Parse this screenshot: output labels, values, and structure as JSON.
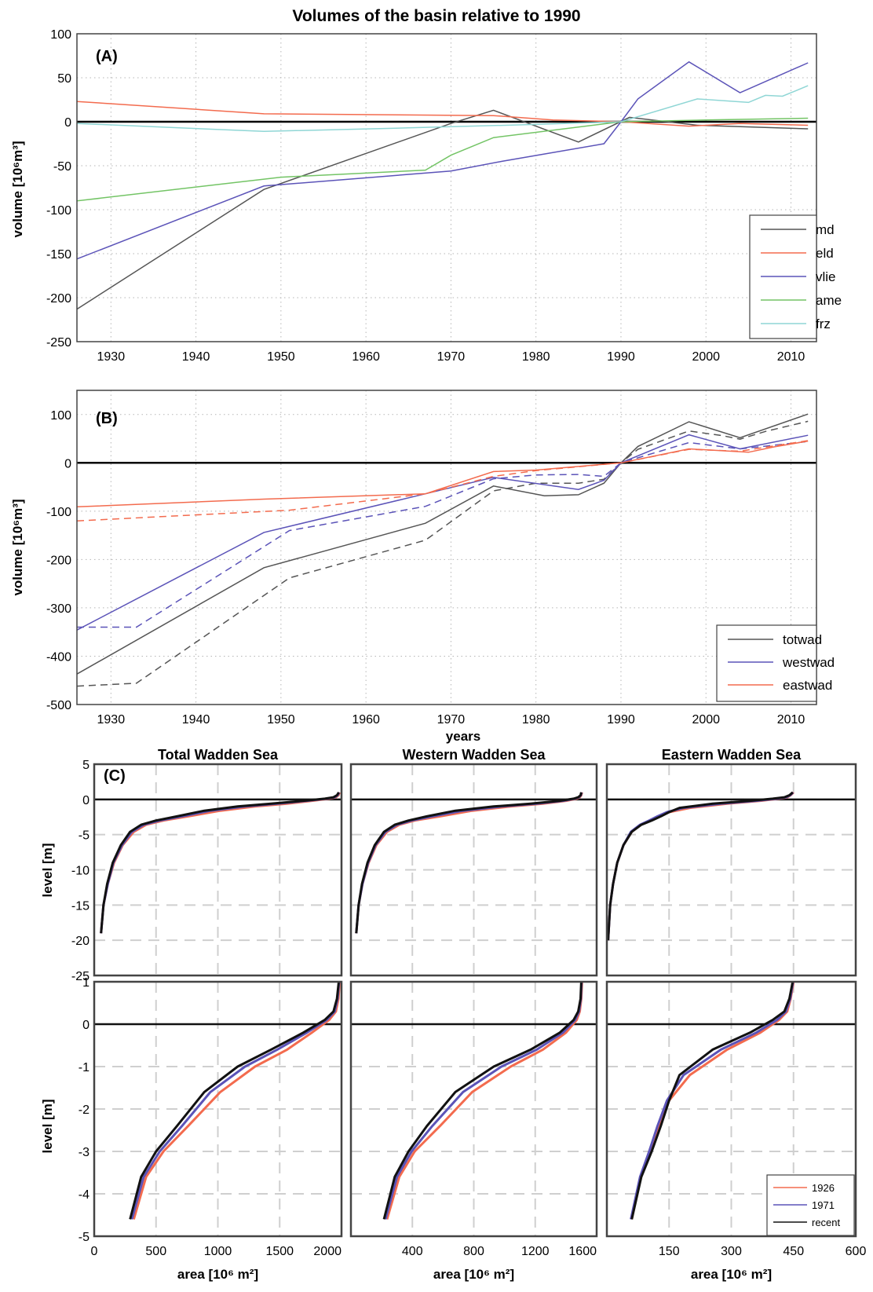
{
  "figure": {
    "title": "Volumes of the basin relative to 1990"
  },
  "panel_a": {
    "tag": "(A)",
    "ylabel": "volume [10⁶m³]",
    "chart_data": {
      "type": "line",
      "title": "Volumes of the basin relative to 1990",
      "xlabel": "",
      "ylabel": "volume [10^6 m^3]",
      "xlim": [
        1926,
        2013
      ],
      "ylim": [
        -250,
        100
      ],
      "xticks": [
        1930,
        1940,
        1950,
        1960,
        1970,
        1980,
        1990,
        2000,
        2010
      ],
      "yticks": [
        -250,
        -200,
        -150,
        -100,
        -50,
        0,
        50,
        100
      ],
      "grid": true,
      "legend_position": "bottom-right",
      "series": [
        {
          "name": "md",
          "color": "#555555",
          "x": [
            1926,
            1948,
            1970,
            1975,
            1985,
            1991,
            1999,
            2012
          ],
          "y": [
            -213,
            -77,
            -2,
            13,
            -23,
            5,
            -4,
            -8
          ]
        },
        {
          "name": "eld",
          "color": "#f36b4e",
          "x": [
            1926,
            1948,
            1975,
            1982,
            1990,
            1998,
            2004,
            2012
          ],
          "y": [
            23,
            9,
            7,
            2,
            0,
            -5,
            -2,
            -4
          ]
        },
        {
          "name": "vlie",
          "color": "#5b53b8",
          "x": [
            1926,
            1948,
            1970,
            1976,
            1988,
            1990,
            1992,
            1998,
            2004,
            2012
          ],
          "y": [
            -156,
            -73,
            -56,
            -45,
            -25,
            0,
            26,
            68,
            33,
            67
          ]
        },
        {
          "name": "ame",
          "color": "#73c465",
          "x": [
            1926,
            1950,
            1967,
            1970,
            1975,
            1990,
            2000,
            2012
          ],
          "y": [
            -90,
            -63,
            -55,
            -38,
            -18,
            0,
            2,
            4
          ]
        },
        {
          "name": "frz",
          "color": "#8fd6d5",
          "x": [
            1926,
            1948,
            1965,
            1980,
            1990,
            1999,
            2005,
            2007,
            2009,
            2012
          ],
          "y": [
            -2,
            -11,
            -7,
            -3,
            0,
            26,
            22,
            30,
            29,
            41
          ]
        }
      ]
    }
  },
  "panel_b": {
    "tag": "(B)",
    "ylabel": "volume [10⁶m³]",
    "xlabel": "years",
    "chart_data": {
      "type": "line",
      "title": "",
      "xlabel": "years",
      "ylabel": "volume [10^6 m^3]",
      "xlim": [
        1926,
        2013
      ],
      "ylim": [
        -500,
        150
      ],
      "xticks": [
        1930,
        1940,
        1950,
        1960,
        1970,
        1980,
        1990,
        2000,
        2010
      ],
      "yticks": [
        -500,
        -400,
        -300,
        -200,
        -100,
        0,
        100
      ],
      "grid": true,
      "legend_position": "bottom-right",
      "series": [
        {
          "name": "totwad",
          "color": "#555555",
          "dash": false,
          "x": [
            1926,
            1948,
            1967,
            1975,
            1981,
            1985,
            1988,
            1990,
            1992,
            1998,
            2004,
            2012
          ],
          "y": [
            -437,
            -217,
            -125,
            -48,
            -68,
            -66,
            -42,
            0,
            34,
            85,
            52,
            101
          ]
        },
        {
          "name": "",
          "color": "#555555",
          "dash": true,
          "x": [
            1926,
            1933,
            1951,
            1967,
            1975,
            1980,
            1985,
            1988,
            1990,
            1992,
            1998,
            2002,
            2004,
            2007,
            2012
          ],
          "y": [
            -462,
            -456,
            -238,
            -160,
            -58,
            -42,
            -42,
            -34,
            0,
            28,
            66,
            56,
            49,
            65,
            86
          ]
        },
        {
          "name": "westwad",
          "color": "#5b53b8",
          "dash": false,
          "x": [
            1926,
            1948,
            1967,
            1975,
            1985,
            1988,
            1990,
            1998,
            2004,
            2012
          ],
          "y": [
            -346,
            -144,
            -64,
            -30,
            -55,
            -36,
            0,
            58,
            29,
            57
          ]
        },
        {
          "name": "",
          "color": "#5b53b8",
          "dash": true,
          "x": [
            1926,
            1933,
            1951,
            1967,
            1975,
            1980,
            1985,
            1988,
            1990,
            1998,
            2004,
            2012
          ],
          "y": [
            -340,
            -340,
            -140,
            -90,
            -33,
            -25,
            -24,
            -28,
            0,
            42,
            29,
            44
          ]
        },
        {
          "name": "eastwad",
          "color": "#f36b4e",
          "dash": false,
          "x": [
            1926,
            1948,
            1967,
            1975,
            1980,
            1990,
            1998,
            2005,
            2008,
            2012
          ],
          "y": [
            -91,
            -75,
            -64,
            -18,
            -15,
            0,
            29,
            22,
            33,
            45
          ]
        },
        {
          "name": "",
          "color": "#f36b4e",
          "dash": true,
          "x": [
            1926,
            1951,
            1967,
            1975,
            1980,
            1990,
            1998,
            2004,
            2012
          ],
          "y": [
            -120,
            -98,
            -64,
            -28,
            -16,
            0,
            28,
            24,
            46
          ]
        }
      ]
    }
  },
  "panel_c": {
    "tag": "(C)",
    "top_ylabel": "level [m]",
    "bottom_ylabel": "level [m]",
    "xlabel": "area [10⁶ m²]",
    "legend": [
      {
        "name": "1926",
        "color": "#f36b4e"
      },
      {
        "name": "1971",
        "color": "#5b53b8"
      },
      {
        "name": "recent",
        "color": "#111111"
      }
    ],
    "subplots": [
      {
        "title": "Total Wadden Sea",
        "xlim": [
          0,
          2000
        ],
        "xticks": [
          0,
          500,
          1000,
          1500,
          2000
        ],
        "top_ylim": [
          -25,
          5
        ],
        "top_yticks": [
          -25,
          -20,
          -15,
          -10,
          -5,
          0,
          5
        ],
        "bottom_ylim": [
          -5,
          1
        ],
        "bottom_yticks": [
          -5,
          -4,
          -3,
          -2,
          -1,
          0,
          1
        ],
        "chart_data": {
          "type": "line",
          "series": [
            {
              "name": "1926",
              "color": "#f36b4e",
              "x": [
                55,
                75,
                110,
                160,
                230,
                320,
                420,
                560,
                760,
                1020,
                1300,
                1560,
                1760,
                1900,
                1955,
                1975,
                1985
              ],
              "y": [
                -19,
                -15,
                -12,
                -9,
                -6.5,
                -4.6,
                -3.6,
                -3,
                -2.4,
                -1.6,
                -1,
                -0.6,
                -0.2,
                0.1,
                0.3,
                0.6,
                1
              ]
            },
            {
              "name": "1971",
              "color": "#5b53b8",
              "x": [
                55,
                75,
                110,
                155,
                225,
                305,
                400,
                530,
                710,
                940,
                1220,
                1480,
                1720,
                1880,
                1945,
                1968,
                1980
              ],
              "y": [
                -19,
                -15,
                -12,
                -9,
                -6.5,
                -4.6,
                -3.6,
                -3,
                -2.4,
                -1.6,
                -1,
                -0.6,
                -0.2,
                0.1,
                0.3,
                0.6,
                1
              ]
            },
            {
              "name": "recent",
              "color": "#111111",
              "x": [
                55,
                75,
                105,
                150,
                215,
                290,
                380,
                500,
                670,
                890,
                1160,
                1430,
                1690,
                1865,
                1935,
                1963,
                1978
              ],
              "y": [
                -19,
                -15,
                -12,
                -9,
                -6.5,
                -4.6,
                -3.6,
                -3,
                -2.4,
                -1.6,
                -1,
                -0.6,
                -0.2,
                0.1,
                0.3,
                0.6,
                1
              ]
            }
          ]
        }
      },
      {
        "title": "Western Wadden Sea",
        "xlim": [
          0,
          1600
        ],
        "xticks": [
          0,
          400,
          800,
          1200,
          1600
        ],
        "top_ylim": [
          -25,
          5
        ],
        "top_yticks": [
          -25,
          -20,
          -15,
          -10,
          -5,
          0,
          5
        ],
        "bottom_ylim": [
          -5,
          1
        ],
        "bottom_yticks": [
          -5,
          -4,
          -3,
          -2,
          -1,
          0,
          1
        ],
        "chart_data": {
          "type": "line",
          "series": [
            {
              "name": "1926",
              "color": "#f36b4e",
              "x": [
                35,
                50,
                75,
                115,
                165,
                235,
                315,
                415,
                580,
                790,
                1040,
                1250,
                1400,
                1470,
                1490,
                1500,
                1505
              ],
              "y": [
                -19,
                -15,
                -12,
                -9,
                -6.5,
                -4.6,
                -3.6,
                -3,
                -2.4,
                -1.6,
                -1,
                -0.6,
                -0.2,
                0.1,
                0.3,
                0.6,
                1
              ]
            },
            {
              "name": "1971",
              "color": "#5b53b8",
              "x": [
                35,
                50,
                75,
                112,
                160,
                225,
                300,
                395,
                530,
                730,
                980,
                1210,
                1380,
                1460,
                1485,
                1497,
                1502
              ],
              "y": [
                -19,
                -15,
                -12,
                -9,
                -6.5,
                -4.6,
                -3.6,
                -3,
                -2.4,
                -1.6,
                -1,
                -0.6,
                -0.2,
                0.1,
                0.3,
                0.6,
                1
              ]
            },
            {
              "name": "recent",
              "color": "#111111",
              "x": [
                35,
                50,
                72,
                108,
                155,
                215,
                285,
                375,
                495,
                680,
                930,
                1170,
                1360,
                1450,
                1480,
                1495,
                1500
              ],
              "y": [
                -19,
                -15,
                -12,
                -9,
                -6.5,
                -4.6,
                -3.6,
                -3,
                -2.4,
                -1.6,
                -1,
                -0.6,
                -0.2,
                0.1,
                0.3,
                0.6,
                1
              ]
            }
          ]
        }
      },
      {
        "title": "Eastern Wadden Sea",
        "xlim": [
          0,
          600
        ],
        "xticks": [
          0,
          150,
          300,
          450,
          600
        ],
        "top_ylim": [
          -25,
          5
        ],
        "top_yticks": [
          -25,
          -20,
          -15,
          -10,
          -5,
          0,
          5
        ],
        "bottom_ylim": [
          -5,
          1
        ],
        "bottom_yticks": [
          -5,
          -4,
          -3,
          -2,
          -1,
          0,
          1
        ],
        "chart_data": {
          "type": "line",
          "series": [
            {
              "name": "1926",
              "color": "#f36b4e",
              "x": [
                3,
                8,
                15,
                25,
                40,
                60,
                82,
                105,
                125,
                150,
                200,
                290,
                370,
                415,
                435,
                443,
                450
              ],
              "y": [
                -20,
                -15,
                -12,
                -9,
                -6.5,
                -4.6,
                -3.6,
                -3,
                -2.4,
                -1.8,
                -1.2,
                -0.6,
                -0.2,
                0.1,
                0.3,
                0.6,
                1
              ]
            },
            {
              "name": "1971",
              "color": "#5b53b8",
              "x": [
                3,
                8,
                15,
                25,
                40,
                58,
                80,
                102,
                122,
                145,
                185,
                275,
                360,
                410,
                432,
                442,
                449
              ],
              "y": [
                -20,
                -15,
                -12,
                -9,
                -6.5,
                -4.6,
                -3.6,
                -3,
                -2.4,
                -1.8,
                -1.2,
                -0.6,
                -0.2,
                0.1,
                0.3,
                0.6,
                1
              ]
            },
            {
              "name": "recent",
              "color": "#111111",
              "x": [
                3,
                8,
                15,
                25,
                40,
                60,
                83,
                108,
                130,
                150,
                175,
                255,
                345,
                400,
                428,
                440,
                448
              ],
              "y": [
                -20,
                -15,
                -12,
                -9,
                -6.5,
                -4.6,
                -3.6,
                -3,
                -2.4,
                -1.8,
                -1.2,
                -0.6,
                -0.2,
                0.1,
                0.3,
                0.6,
                1
              ]
            }
          ]
        }
      }
    ]
  }
}
